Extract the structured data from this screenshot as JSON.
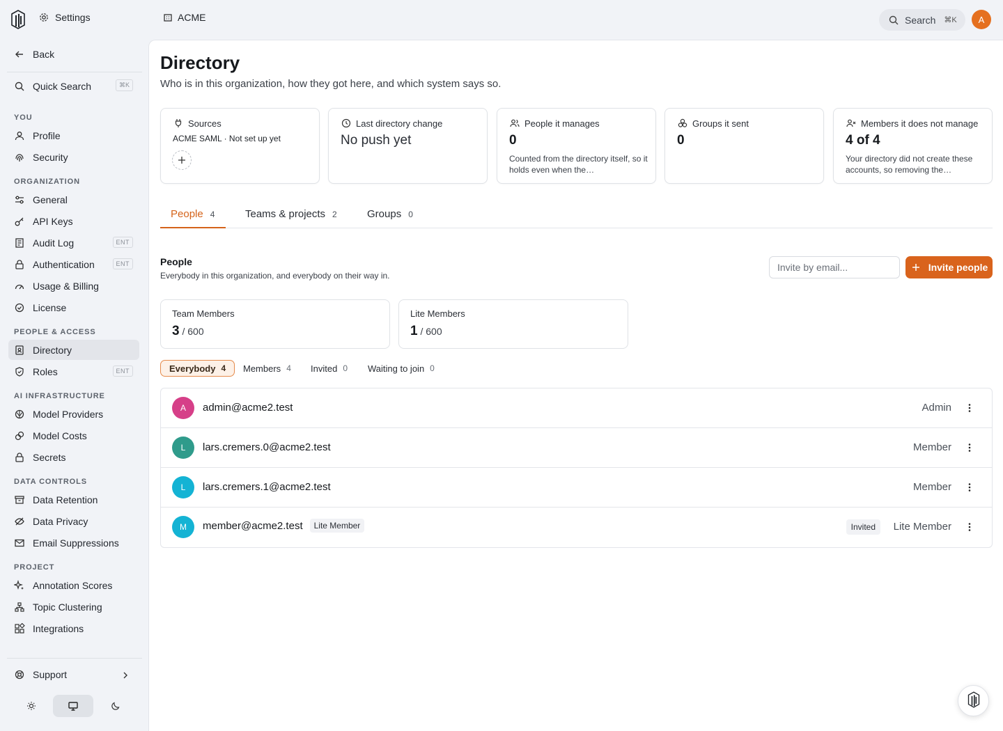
{
  "topbar": {
    "settings_label": "Settings",
    "org_label": "ACME",
    "search_label": "Search",
    "search_shortcut": "⌘K",
    "avatar_initial": "A"
  },
  "sidebar": {
    "back": "Back",
    "quick_search": "Quick Search",
    "quick_search_kbd": "⌘K",
    "sections": {
      "you": "YOU",
      "organization": "ORGANIZATION",
      "people_access": "PEOPLE & ACCESS",
      "ai_infra": "AI INFRASTRUCTURE",
      "data_controls": "DATA CONTROLS",
      "project": "PROJECT"
    },
    "items": {
      "profile": "Profile",
      "security": "Security",
      "general": "General",
      "api_keys": "API Keys",
      "audit_log": "Audit Log",
      "authentication": "Authentication",
      "usage_billing": "Usage & Billing",
      "license": "License",
      "directory": "Directory",
      "roles": "Roles",
      "model_providers": "Model Providers",
      "model_costs": "Model Costs",
      "secrets": "Secrets",
      "data_retention": "Data Retention",
      "data_privacy": "Data Privacy",
      "email_suppressions": "Email Suppressions",
      "annotation_scores": "Annotation Scores",
      "topic_clustering": "Topic Clustering",
      "integrations": "Integrations",
      "support": "Support"
    },
    "ent_badge": "ENT"
  },
  "page": {
    "title": "Directory",
    "subtitle": "Who is in this organization, how they got here, and which system says so."
  },
  "stats": {
    "sources": {
      "label": "Sources",
      "value": "ACME SAML · Not set up yet"
    },
    "last_change": {
      "label": "Last directory change",
      "value": "No push yet"
    },
    "manages": {
      "label": "People it manages",
      "value": "0",
      "desc": "Counted from the directory itself, so it holds even when the…"
    },
    "groups": {
      "label": "Groups it sent",
      "value": "0"
    },
    "unmanaged": {
      "label": "Members it does not manage",
      "value": "4 of 4",
      "desc": "Your directory did not create these accounts, so removing the…"
    }
  },
  "tabs": [
    {
      "label": "People",
      "count": "4"
    },
    {
      "label": "Teams & projects",
      "count": "2"
    },
    {
      "label": "Groups",
      "count": "0"
    }
  ],
  "people_section": {
    "title": "People",
    "subtitle": "Everybody in this organization, and everybody on their way in.",
    "invite_placeholder": "Invite by email...",
    "invite_button": "Invite people"
  },
  "seats": {
    "team": {
      "label": "Team Members",
      "used": "3",
      "total": "/ 600"
    },
    "lite": {
      "label": "Lite Members",
      "used": "1",
      "total": "/ 600"
    }
  },
  "filters": [
    {
      "label": "Everybody",
      "count": "4"
    },
    {
      "label": "Members",
      "count": "4"
    },
    {
      "label": "Invited",
      "count": "0"
    },
    {
      "label": "Waiting to join",
      "count": "0"
    }
  ],
  "people": [
    {
      "initial": "A",
      "email": "admin@acme2.test",
      "role": "Admin",
      "color": "#d63f88"
    },
    {
      "initial": "L",
      "email": "lars.cremers.0@acme2.test",
      "role": "Member",
      "color": "#2f9b8b"
    },
    {
      "initial": "L",
      "email": "lars.cremers.1@acme2.test",
      "role": "Member",
      "color": "#14b3d4"
    },
    {
      "initial": "M",
      "email": "member@acme2.test",
      "tag": "Lite Member",
      "status": "Invited",
      "role": "Lite Member",
      "color": "#14b3d4"
    }
  ],
  "colors": {
    "accent": "#d9631c",
    "background": "#f1f3f7"
  }
}
